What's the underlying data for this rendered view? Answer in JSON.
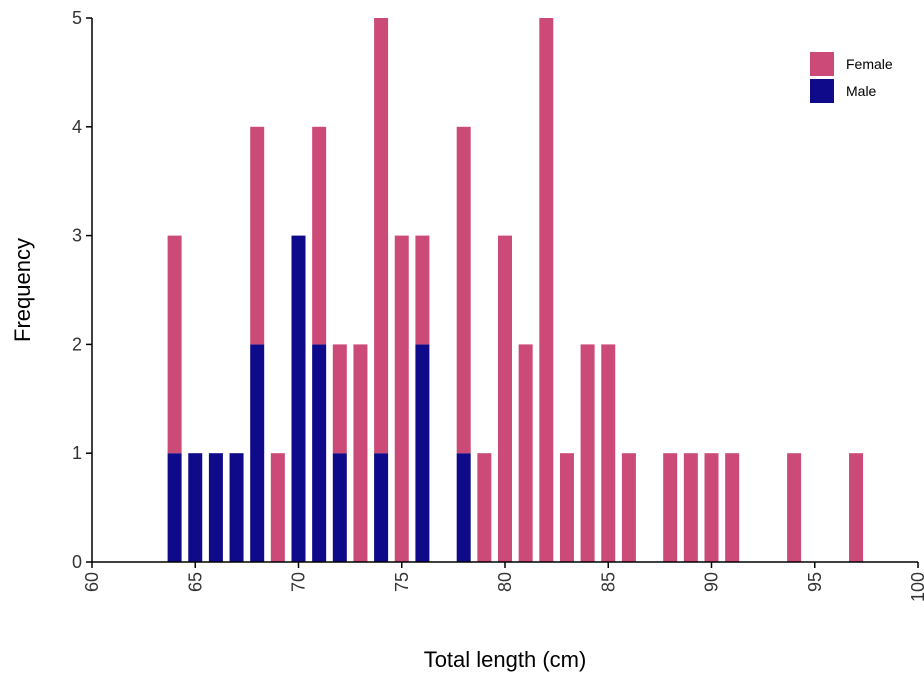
{
  "chart_data": {
    "type": "bar",
    "stacked": true,
    "xlabel": "Total length (cm)",
    "ylabel": "Frequency",
    "xlim": [
      60,
      100
    ],
    "ylim": [
      0,
      5
    ],
    "x_ticks": [
      "60",
      "65",
      "70",
      "75",
      "80",
      "85",
      "90",
      "95",
      "100"
    ],
    "y_ticks": [
      "0",
      "1",
      "2",
      "3",
      "4",
      "5"
    ],
    "grid": false,
    "legend_position": "top-right",
    "x": [
      64,
      65,
      66,
      67,
      68,
      69,
      70,
      71,
      72,
      73,
      74,
      75,
      76,
      78,
      79,
      80,
      81,
      82,
      83,
      84,
      85,
      86,
      88,
      89,
      90,
      91,
      94,
      97
    ],
    "series": [
      {
        "name": "Male",
        "color": "#0f0a8a",
        "values": [
          1,
          1,
          1,
          1,
          2,
          0,
          3,
          2,
          1,
          0,
          1,
          0,
          2,
          1,
          0,
          0,
          0,
          0,
          0,
          0,
          0,
          0,
          0,
          0,
          0,
          0,
          0,
          0
        ]
      },
      {
        "name": "Female",
        "color": "#cc4a78",
        "values": [
          2,
          0,
          0,
          0,
          2,
          1,
          0,
          2,
          1,
          2,
          4,
          3,
          1,
          3,
          1,
          3,
          2,
          5,
          1,
          2,
          2,
          1,
          1,
          1,
          1,
          1,
          1,
          1
        ]
      }
    ],
    "legend": [
      {
        "name": "Female",
        "color": "#cc4a78"
      },
      {
        "name": "Male",
        "color": "#0f0a8a"
      }
    ]
  }
}
